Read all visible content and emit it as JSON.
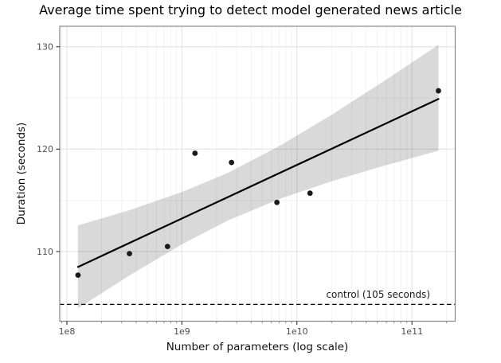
{
  "chart_data": {
    "type": "scatter",
    "title": "Average time spent trying to detect model generated news article",
    "xlabel": "Number of parameters (log scale)",
    "ylabel": "Duration (seconds)",
    "x_scale": "log10",
    "xlim_log10": [
      7.938,
      11.376
    ],
    "ylim": [
      103.2,
      132.0
    ],
    "grid": true,
    "legend": false,
    "x_ticks": {
      "values": [
        100000000.0,
        1000000000.0,
        10000000000.0,
        100000000000.0
      ],
      "labels": [
        "1e8",
        "1e9",
        "1e10",
        "1e11"
      ]
    },
    "x_minor_ticks": [
      90000000.0,
      200000000.0,
      300000000.0,
      400000000.0,
      500000000.0,
      600000000.0,
      700000000.0,
      800000000.0,
      900000000.0,
      2000000000.0,
      3000000000.0,
      4000000000.0,
      5000000000.0,
      6000000000.0,
      7000000000.0,
      8000000000.0,
      9000000000.0,
      20000000000.0,
      30000000000.0,
      40000000000.0,
      50000000000.0,
      60000000000.0,
      70000000000.0,
      80000000000.0,
      90000000000.0,
      200000000000.0
    ],
    "y_ticks": {
      "values": [
        110,
        120,
        130
      ],
      "labels": [
        "110",
        "120",
        "130"
      ]
    },
    "y_minor_gridlines": [
      105,
      115,
      125
    ],
    "points": [
      {
        "x": 125000000.0,
        "y": 107.7
      },
      {
        "x": 350000000.0,
        "y": 109.8
      },
      {
        "x": 750000000.0,
        "y": 110.5
      },
      {
        "x": 1300000000.0,
        "y": 119.6
      },
      {
        "x": 2700000000.0,
        "y": 118.7
      },
      {
        "x": 6700000000.0,
        "y": 114.8
      },
      {
        "x": 13000000000.0,
        "y": 115.7
      },
      {
        "x": 170000000000.0,
        "y": 125.7
      }
    ],
    "trend_line": {
      "x": [
        125000000.0,
        170000000000.0
      ],
      "y": [
        108.5,
        124.9
      ]
    },
    "confidence_band": [
      {
        "x": 125000000.0,
        "lo": 104.46,
        "hi": 112.54
      },
      {
        "x": 355000000.0,
        "lo": 107.71,
        "hi": 114.07
      },
      {
        "x": 1000000000.0,
        "lo": 110.71,
        "hi": 115.81
      },
      {
        "x": 2510000000.0,
        "lo": 113.03,
        "hi": 117.69
      },
      {
        "x": 7080000000.0,
        "lo": 115.14,
        "hi": 120.32
      },
      {
        "x": 20000000000.0,
        "lo": 116.86,
        "hi": 123.36
      },
      {
        "x": 56200000000.0,
        "lo": 118.36,
        "hi": 126.6
      },
      {
        "x": 170000000000.0,
        "lo": 119.84,
        "hi": 130.18
      }
    ],
    "control_line": {
      "y": 105,
      "label": "control (105 seconds)",
      "style": "dashed"
    },
    "colors": {
      "point": "#1a1a1a",
      "trend": "#000000",
      "band": "rgba(0,0,0,0.15)",
      "control": "#000000",
      "grid_major": "#e5e5e5",
      "grid_minor": "#f2f2f2",
      "panel_border": "#888888",
      "tick_mark_major": "#333333",
      "tick_mark_minor": "#8a8a8a",
      "tick_label": "#4d4d4d",
      "background": "#ffffff"
    }
  }
}
